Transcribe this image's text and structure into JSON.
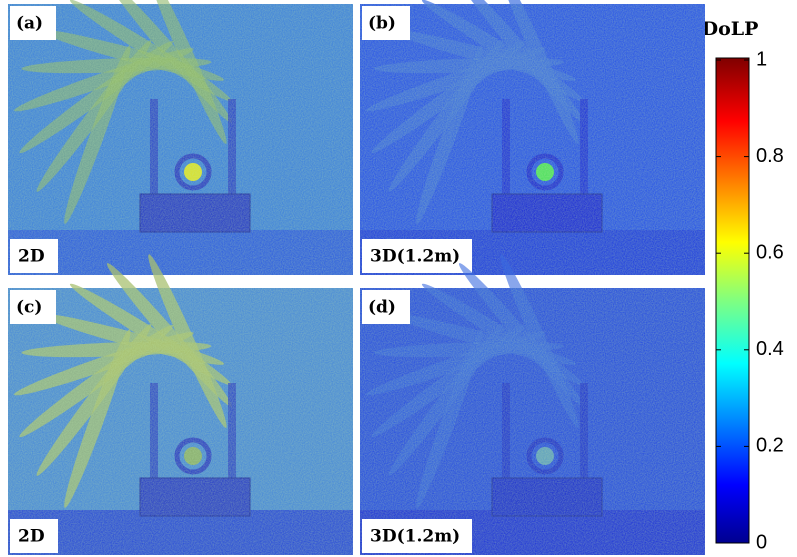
{
  "panels": [
    {
      "label": "(a)",
      "caption": "2D"
    },
    {
      "label": "(b)",
      "caption": "3D(1.2m)"
    },
    {
      "label": "(c)",
      "caption": "2D"
    },
    {
      "label": "(d)",
      "caption": "3D(1.2m)"
    }
  ],
  "colorbar": {
    "title": "DoLP",
    "lim": [
      0,
      1
    ],
    "ticks": [
      0,
      0.2,
      0.4,
      0.6,
      0.8,
      1
    ]
  }
}
